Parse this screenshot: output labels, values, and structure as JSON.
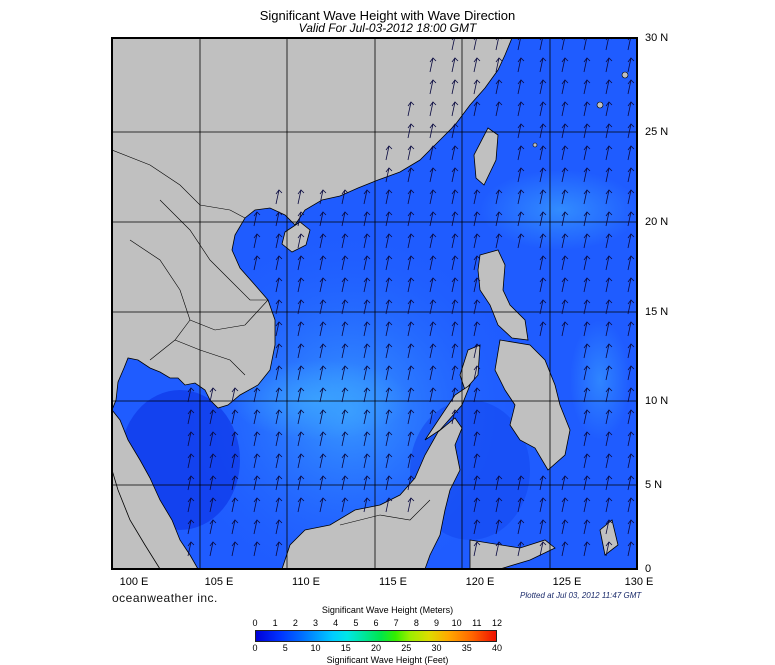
{
  "title": "Significant Wave Height with Wave Direction",
  "subtitle": "Valid For Jul-03-2012 18:00 GMT",
  "lat_labels": [
    "30 N",
    "25 N",
    "20 N",
    "15 N",
    "10 N",
    "5 N",
    "0"
  ],
  "lon_labels": [
    "100 E",
    "105 E",
    "110 E",
    "115 E",
    "120 E",
    "125 E",
    "130 E"
  ],
  "brand": "oceanweather inc.",
  "plotted": "Plotted at Jul 03, 2012 11:47 GMT",
  "colorbar": {
    "meters_title": "Significant Wave Height (Meters)",
    "feet_title": "Significant Wave Height (Feet)",
    "meters_ticks": [
      "0",
      "1",
      "2",
      "3",
      "4",
      "5",
      "6",
      "7",
      "8",
      "9",
      "10",
      "11",
      "12"
    ],
    "feet_ticks": [
      "0",
      "5",
      "10",
      "15",
      "20",
      "25",
      "30",
      "35",
      "40"
    ]
  },
  "colors": {
    "land": "#c0c0c0",
    "sea_low": "#0a2ae0",
    "sea_mid": "#1f5cff",
    "sea_high": "#2e8cff",
    "arrow": "#0a0a40"
  },
  "map_extent": {
    "lon_min": 100,
    "lon_max": 130,
    "lat_min": 0,
    "lat_max": 30
  },
  "wind_direction": "southwest monsoon, waves toward north-northeast"
}
